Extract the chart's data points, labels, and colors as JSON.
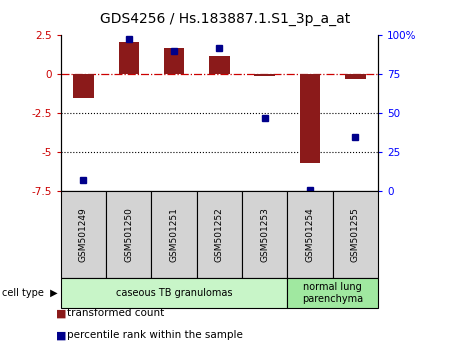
{
  "title": "GDS4256 / Hs.183887.1.S1_3p_a_at",
  "samples": [
    "GSM501249",
    "GSM501250",
    "GSM501251",
    "GSM501252",
    "GSM501253",
    "GSM501254",
    "GSM501255"
  ],
  "transformed_count": [
    -1.5,
    2.1,
    1.7,
    1.2,
    -0.1,
    -5.7,
    -0.3
  ],
  "percentile_rank": [
    7,
    98,
    90,
    92,
    47,
    1,
    35
  ],
  "ylim_left": [
    -7.5,
    2.5
  ],
  "ylim_right": [
    0,
    100
  ],
  "left_ticks": [
    2.5,
    0,
    -2.5,
    -5.0,
    -7.5
  ],
  "right_ticks": [
    100,
    75,
    50,
    25,
    0
  ],
  "right_tick_labels": [
    "100%",
    "75",
    "50",
    "25",
    "0"
  ],
  "bar_color": "#8B1A1A",
  "dot_color": "#00008B",
  "hline_dash_color": "#cc0000",
  "hline_dot_color": "#000000",
  "cell_groups": [
    {
      "label": "caseous TB granulomas",
      "n": 5,
      "color": "#c8f5c8"
    },
    {
      "label": "normal lung\nparenchyma",
      "n": 2,
      "color": "#a0e8a0"
    }
  ],
  "legend_items": [
    {
      "label": "transformed count",
      "color": "#8B1A1A"
    },
    {
      "label": "percentile rank within the sample",
      "color": "#00008B"
    }
  ],
  "bg_color": "#ffffff",
  "title_fontsize": 10,
  "tick_fontsize": 7.5,
  "sample_fontsize": 6.5,
  "cell_fontsize": 7,
  "legend_fontsize": 7.5
}
